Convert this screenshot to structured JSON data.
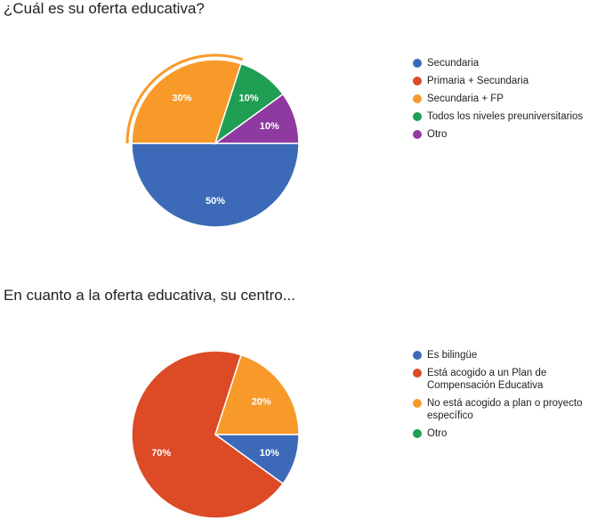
{
  "chart_data": [
    {
      "type": "pie",
      "title": "¿Cuál es su oferta educativa?",
      "legend_position": "right",
      "categories": [
        "Secundaria",
        "Primaria + Secundaria",
        "Secundaria + FP",
        "Todos los niveles preuniversitarios",
        "Otro"
      ],
      "values": [
        50,
        0,
        30,
        10,
        10
      ],
      "value_labels": [
        "50%",
        "",
        "30%",
        "10%",
        "10%"
      ],
      "colors": [
        "#3c6ab8",
        "#dc4a26",
        "#f79a2a",
        "#1f9e54",
        "#8f3aa0"
      ],
      "highlighted": "Secundaria + FP"
    },
    {
      "type": "pie",
      "title": "En cuanto a la oferta educativa, su centro...",
      "legend_position": "right",
      "categories": [
        "Es bilingüe",
        "Está acogido a un Plan de\nCompensación Educativa",
        "No está acogido a plan o proyecto\nespecífico",
        "Otro"
      ],
      "values": [
        10,
        70,
        20,
        0
      ],
      "value_labels": [
        "10%",
        "70%",
        "20%",
        ""
      ],
      "colors": [
        "#3c6ab8",
        "#dc4a26",
        "#f79a2a",
        "#1f9e54"
      ]
    }
  ]
}
